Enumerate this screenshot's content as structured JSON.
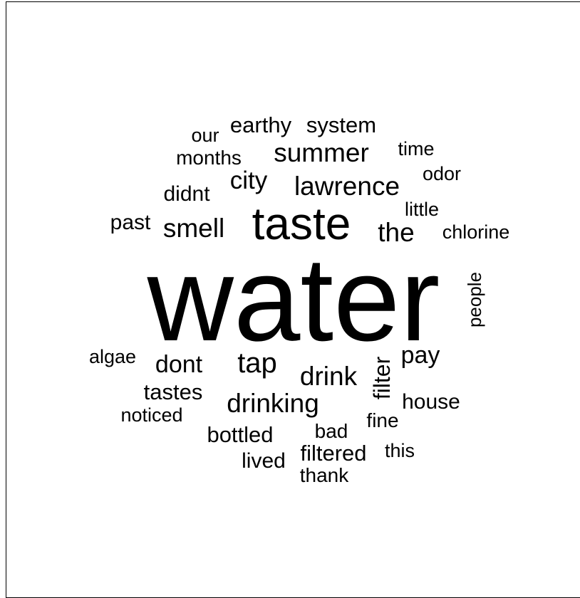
{
  "chart_data": {
    "type": "wordcloud",
    "words": [
      {
        "text": "water",
        "freq": 100
      },
      {
        "text": "taste",
        "freq": 48
      },
      {
        "text": "tap",
        "freq": 28
      },
      {
        "text": "summer",
        "freq": 24
      },
      {
        "text": "lawrence",
        "freq": 24
      },
      {
        "text": "drinking",
        "freq": 24
      },
      {
        "text": "smell",
        "freq": 23
      },
      {
        "text": "the",
        "freq": 23
      },
      {
        "text": "drink",
        "freq": 23
      },
      {
        "text": "filter",
        "freq": 22
      },
      {
        "text": "city",
        "freq": 21
      },
      {
        "text": "dont",
        "freq": 21
      },
      {
        "text": "earthy",
        "freq": 19
      },
      {
        "text": "system",
        "freq": 19
      },
      {
        "text": "pay",
        "freq": 19
      },
      {
        "text": "months",
        "freq": 18
      },
      {
        "text": "tastes",
        "freq": 18
      },
      {
        "text": "bottled",
        "freq": 18
      },
      {
        "text": "filtered",
        "freq": 18
      },
      {
        "text": "didnt",
        "freq": 17
      },
      {
        "text": "house",
        "freq": 17
      },
      {
        "text": "past",
        "freq": 16
      },
      {
        "text": "people",
        "freq": 16
      },
      {
        "text": "lived",
        "freq": 16
      },
      {
        "text": "chlorine",
        "freq": 15
      },
      {
        "text": "little",
        "freq": 15
      },
      {
        "text": "fine",
        "freq": 15
      },
      {
        "text": "bad",
        "freq": 15
      },
      {
        "text": "thank",
        "freq": 15
      },
      {
        "text": "our",
        "freq": 14
      },
      {
        "text": "time",
        "freq": 14
      },
      {
        "text": "odor",
        "freq": 14
      },
      {
        "text": "algae",
        "freq": 14
      },
      {
        "text": "noticed",
        "freq": 14
      },
      {
        "text": "this",
        "freq": 14
      }
    ]
  }
}
